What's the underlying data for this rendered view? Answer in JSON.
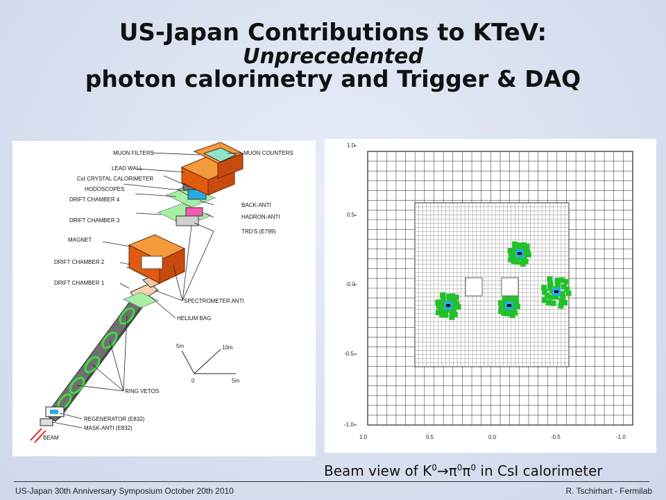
{
  "slide": {
    "title_line1": "US-Japan Contributions to KTeV:",
    "title_line2": "Unprecedented",
    "title_line3": "photon calorimetry and Trigger & DAQ"
  },
  "detector": {
    "labels": {
      "muon_filters": "MUON FILTERS",
      "muon_counters": "MUON COUNTERS",
      "lead_wall": "LEAD WALL",
      "csi": "CsI CRYSTAL CALORIMETER",
      "hodoscopes": "HODOSCOPES",
      "dc4": "DRIFT CHAMBER 4",
      "back_anti": "BACK-ANTI",
      "hadron_anti": "HADRON-ANTI",
      "dc3": "DRIFT CHAMBER 3",
      "trd": "TRD'S (E799)",
      "magnet": "MAGNET",
      "dc2": "DRIFT CHAMBER 2",
      "dc1": "DRIFT CHAMBER 1",
      "spectrometer_anti": "SPECTROMETER ANTI",
      "helium_bag": "HELIUM BAG",
      "ring_vetos": "RING VETOS",
      "regenerator": "REGENERATOR (E832)",
      "mask_anti": "MASK-ANTI (E832)",
      "beam": "BEAM"
    },
    "scale": {
      "s5m_up": "5m",
      "s10m": "10m",
      "s0": "0",
      "s5m_right": "5m"
    }
  },
  "calorimeter": {
    "y_ticks": [
      "1.0",
      "0.5",
      "-0.0",
      "-0.5",
      "-1.0"
    ],
    "x_ticks": [
      "1.0",
      "0.5",
      "0.0",
      "-0.5",
      "-1.0"
    ]
  },
  "caption": {
    "prefix": "Beam view of K",
    "arrow": "→π",
    "pi": "π",
    "suffix": " in CsI calorimeter",
    "zero": "0"
  },
  "footer": {
    "left": "US-Japan 30th Anniversary Symposium  October 20th 2010",
    "right": "R. Tschirhart - Fermilab"
  },
  "colors": {
    "cluster_green": "#22c02a",
    "cluster_cyan": "#29a9e0",
    "magnet_orange": "#e05a10",
    "ring_green": "#3fdc3f"
  }
}
